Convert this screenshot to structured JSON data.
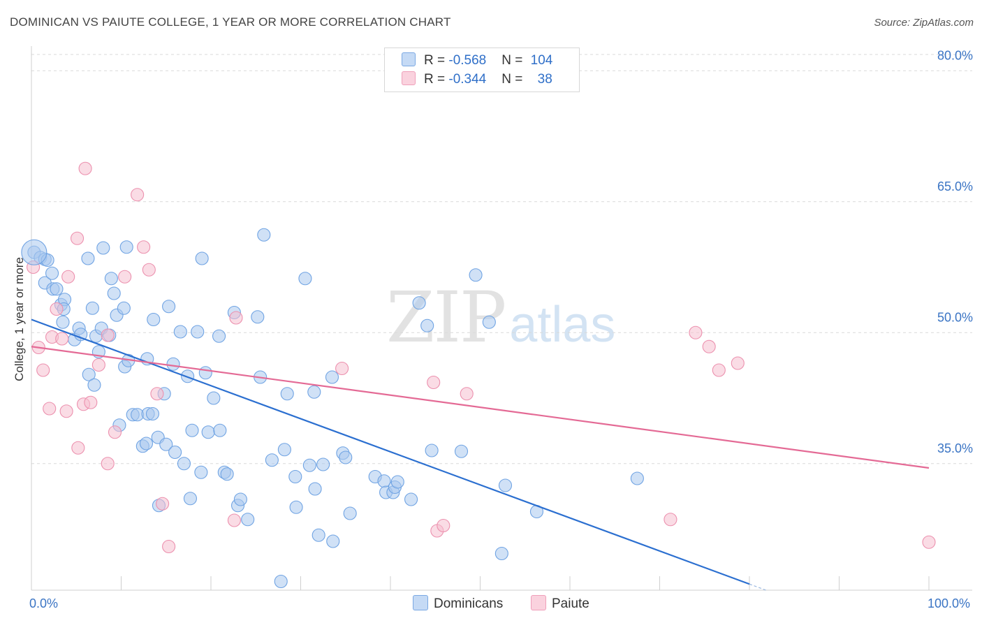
{
  "title": "DOMINICAN VS PAIUTE COLLEGE, 1 YEAR OR MORE CORRELATION CHART",
  "source": "Source: ZipAtlas.com",
  "watermark": {
    "zip": "ZIP",
    "atlas": "atlas"
  },
  "legend": {
    "rows": [
      {
        "r_label": "R = ",
        "r_value": "-0.568",
        "n_label": "N = ",
        "n_value": "104",
        "color": "#a9c8ef"
      },
      {
        "r_label": "R = ",
        "r_value": "-0.344",
        "n_label": "N = ",
        "n_value": "38",
        "color": "#f6bfd0"
      }
    ]
  },
  "bottom_legend": [
    {
      "label": "Dominicans",
      "color": "#a9c8ef"
    },
    {
      "label": "Paiute",
      "color": "#f6bfd0"
    }
  ],
  "chart_data": {
    "type": "scatter",
    "title": "DOMINICAN VS PAIUTE COLLEGE, 1 YEAR OR MORE CORRELATION CHART",
    "xlabel": "",
    "ylabel": "College, 1 year or more",
    "xlim": [
      0,
      100
    ],
    "ylim": [
      20.5,
      82.5
    ],
    "x_ticks": [
      0,
      10,
      20,
      30,
      40,
      50,
      60,
      70,
      80,
      90,
      100
    ],
    "x_tick_labels": [
      {
        "x": 0,
        "label": "0.0%"
      },
      {
        "x": 100,
        "label": "100.0%"
      }
    ],
    "y_ticks": [
      {
        "y": 35,
        "label": "35.0%"
      },
      {
        "y": 50,
        "label": "50.0%"
      },
      {
        "y": 65,
        "label": "65.0%"
      },
      {
        "y": 80,
        "label": "80.0%"
      }
    ],
    "grid": "horizontal dashed",
    "series": [
      {
        "name": "Dominicans",
        "color": "#6fa3e3",
        "fill": "#a9c8ef",
        "trend": {
          "x": [
            0,
            80
          ],
          "y": [
            51.5,
            21.2
          ]
        },
        "points": [
          [
            0.3,
            59.2
          ],
          [
            1.0,
            58.6
          ],
          [
            1.5,
            58.4
          ],
          [
            1.8,
            58.3
          ],
          [
            1.5,
            55.7
          ],
          [
            2.3,
            56.8
          ],
          [
            2.4,
            55.0
          ],
          [
            2.8,
            55.0
          ],
          [
            3.3,
            53.2
          ],
          [
            3.7,
            53.8
          ],
          [
            3.6,
            52.7
          ],
          [
            3.5,
            51.2
          ],
          [
            4.8,
            49.2
          ],
          [
            5.3,
            50.5
          ],
          [
            5.5,
            49.8
          ],
          [
            6.3,
            58.5
          ],
          [
            6.8,
            52.8
          ],
          [
            7.2,
            49.6
          ],
          [
            6.4,
            45.2
          ],
          [
            7.0,
            44.0
          ],
          [
            7.5,
            47.8
          ],
          [
            7.8,
            50.5
          ],
          [
            8.0,
            59.7
          ],
          [
            8.7,
            49.7
          ],
          [
            8.9,
            56.2
          ],
          [
            9.2,
            54.5
          ],
          [
            9.5,
            52.0
          ],
          [
            10.3,
            52.8
          ],
          [
            9.8,
            39.4
          ],
          [
            10.4,
            46.1
          ],
          [
            10.8,
            46.8
          ],
          [
            10.6,
            59.8
          ],
          [
            11.3,
            40.6
          ],
          [
            11.8,
            40.6
          ],
          [
            12.4,
            37.0
          ],
          [
            12.8,
            37.3
          ],
          [
            13.0,
            40.7
          ],
          [
            12.9,
            47.0
          ],
          [
            13.5,
            40.7
          ],
          [
            13.6,
            51.5
          ],
          [
            14.1,
            38.0
          ],
          [
            14.2,
            30.2
          ],
          [
            14.8,
            43.0
          ],
          [
            15.0,
            37.2
          ],
          [
            15.3,
            53.0
          ],
          [
            15.8,
            46.4
          ],
          [
            16.0,
            36.3
          ],
          [
            16.6,
            50.1
          ],
          [
            17.0,
            35.0
          ],
          [
            17.4,
            45.0
          ],
          [
            17.7,
            31.0
          ],
          [
            17.9,
            38.8
          ],
          [
            18.5,
            50.1
          ],
          [
            18.9,
            34.0
          ],
          [
            19.0,
            58.5
          ],
          [
            19.4,
            45.4
          ],
          [
            19.7,
            38.6
          ],
          [
            20.3,
            42.5
          ],
          [
            20.9,
            49.6
          ],
          [
            21.0,
            38.8
          ],
          [
            21.5,
            34.0
          ],
          [
            21.8,
            33.8
          ],
          [
            22.6,
            52.3
          ],
          [
            23.0,
            30.2
          ],
          [
            23.3,
            30.9
          ],
          [
            24.1,
            28.6
          ],
          [
            25.2,
            51.8
          ],
          [
            25.5,
            44.9
          ],
          [
            25.9,
            61.2
          ],
          [
            26.8,
            35.4
          ],
          [
            27.8,
            21.5
          ],
          [
            28.2,
            36.6
          ],
          [
            28.5,
            43.0
          ],
          [
            29.4,
            33.5
          ],
          [
            29.5,
            30.0
          ],
          [
            30.5,
            56.2
          ],
          [
            31.0,
            34.8
          ],
          [
            31.5,
            43.2
          ],
          [
            31.6,
            32.1
          ],
          [
            32.0,
            26.8
          ],
          [
            32.5,
            34.9
          ],
          [
            33.6,
            26.1
          ],
          [
            33.5,
            44.9
          ],
          [
            34.7,
            36.2
          ],
          [
            35.0,
            35.7
          ],
          [
            35.5,
            29.3
          ],
          [
            38.3,
            33.5
          ],
          [
            39.3,
            33.0
          ],
          [
            39.5,
            31.7
          ],
          [
            40.3,
            31.7
          ],
          [
            40.5,
            32.3
          ],
          [
            40.8,
            32.9
          ],
          [
            42.3,
            30.9
          ],
          [
            43.2,
            53.4
          ],
          [
            44.1,
            50.8
          ],
          [
            44.6,
            36.5
          ],
          [
            47.9,
            36.4
          ],
          [
            49.5,
            56.6
          ],
          [
            51.0,
            51.2
          ],
          [
            52.4,
            24.7
          ],
          [
            52.8,
            32.5
          ],
          [
            56.3,
            29.5
          ],
          [
            67.5,
            33.3
          ]
        ]
      },
      {
        "name": "Paiute",
        "color": "#ec90ae",
        "fill": "#f6bfd0",
        "trend": {
          "x": [
            0,
            100
          ],
          "y": [
            48.4,
            34.5
          ]
        },
        "points": [
          [
            0.2,
            57.5
          ],
          [
            0.8,
            48.3
          ],
          [
            1.3,
            45.7
          ],
          [
            2.0,
            41.3
          ],
          [
            2.3,
            49.5
          ],
          [
            2.8,
            52.7
          ],
          [
            3.4,
            49.3
          ],
          [
            3.9,
            41.0
          ],
          [
            4.1,
            56.4
          ],
          [
            5.2,
            36.8
          ],
          [
            5.1,
            60.8
          ],
          [
            5.8,
            41.8
          ],
          [
            6.0,
            68.8
          ],
          [
            6.6,
            42.0
          ],
          [
            7.5,
            46.3
          ],
          [
            8.5,
            49.7
          ],
          [
            8.5,
            35.0
          ],
          [
            9.3,
            38.6
          ],
          [
            10.4,
            56.4
          ],
          [
            11.8,
            65.8
          ],
          [
            12.5,
            59.8
          ],
          [
            13.1,
            57.2
          ],
          [
            14.0,
            43.0
          ],
          [
            14.6,
            30.4
          ],
          [
            15.3,
            25.5
          ],
          [
            22.6,
            28.5
          ],
          [
            22.8,
            51.7
          ],
          [
            34.6,
            45.9
          ],
          [
            44.8,
            44.3
          ],
          [
            45.2,
            27.3
          ],
          [
            45.9,
            27.9
          ],
          [
            48.5,
            43.0
          ],
          [
            71.2,
            28.6
          ],
          [
            74.0,
            50.0
          ],
          [
            75.5,
            48.4
          ],
          [
            76.6,
            45.7
          ],
          [
            78.7,
            46.5
          ],
          [
            100.0,
            26.0
          ]
        ]
      }
    ],
    "big_point": {
      "series": "Dominicans",
      "x": 0.3,
      "y": 59.2
    }
  }
}
